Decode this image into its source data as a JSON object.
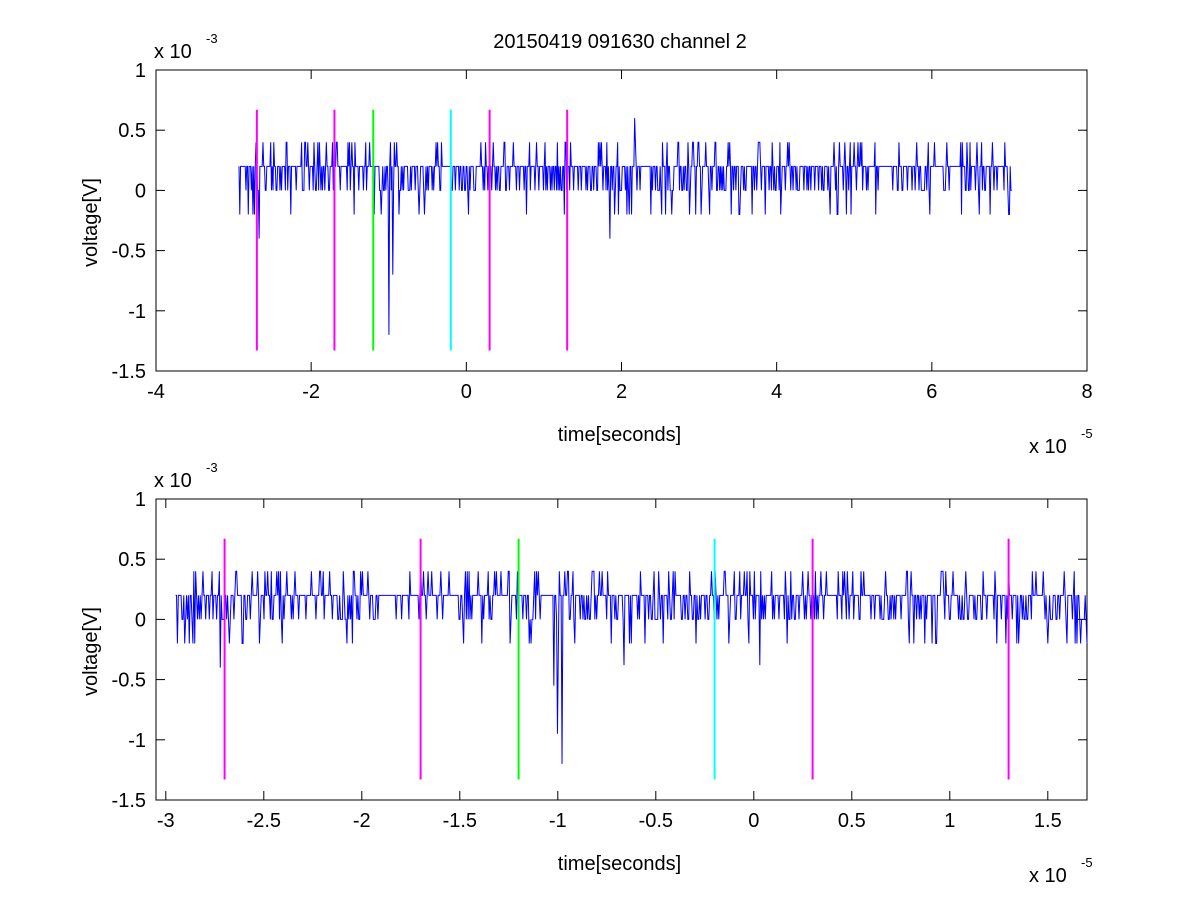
{
  "figure": {
    "title": "20150419 091630 channel 2"
  },
  "chart_data": [
    {
      "type": "line",
      "title": "20150419 091630 channel 2",
      "xlabel": "time[seconds]",
      "ylabel": "voltage[V]",
      "x_multiplier_label": "x 10",
      "x_multiplier_exp": "-5",
      "y_multiplier_label": "x 10",
      "y_multiplier_exp": "-3",
      "xlim": [
        -4,
        8
      ],
      "ylim": [
        -1.5,
        1
      ],
      "x_ticks": [
        -4,
        -2,
        0,
        2,
        4,
        6,
        8
      ],
      "x_tick_labels": [
        "-4",
        "-2",
        "0",
        "2",
        "4",
        "6",
        "8"
      ],
      "y_ticks": [
        -1.5,
        -1,
        -0.5,
        0,
        0.5,
        1
      ],
      "y_tick_labels": [
        "-1.5",
        "-1",
        "-0.5",
        "0",
        "0.5",
        "1"
      ],
      "grid": false,
      "series": [
        {
          "color": "#0000ff",
          "x_range": [
            -2.93,
            7.03
          ],
          "baseline": 0.1,
          "levels": [
            0,
            0.2,
            0.4
          ],
          "extremes": [
            {
              "x": -1.0,
              "y": -1.2
            },
            {
              "x": -0.95,
              "y": -0.7
            },
            {
              "x": 2.17,
              "y": 0.6
            },
            {
              "x": -2.67,
              "y": -0.4
            },
            {
              "x": 1.85,
              "y": -0.4
            }
          ]
        }
      ],
      "vlines": [
        {
          "x": -2.7,
          "color": "#ff00ff",
          "y_range": [
            -1.33,
            0.67
          ]
        },
        {
          "x": -1.7,
          "color": "#ff00ff",
          "y_range": [
            -1.33,
            0.67
          ]
        },
        {
          "x": -1.2,
          "color": "#00ff00",
          "y_range": [
            -1.33,
            0.67
          ]
        },
        {
          "x": -0.2,
          "color": "#00ffff",
          "y_range": [
            -1.33,
            0.67
          ]
        },
        {
          "x": 0.3,
          "color": "#ff00ff",
          "y_range": [
            -1.33,
            0.67
          ]
        },
        {
          "x": 1.3,
          "color": "#ff00ff",
          "y_range": [
            -1.33,
            0.67
          ]
        }
      ]
    },
    {
      "type": "line",
      "title": "",
      "xlabel": "time[seconds]",
      "ylabel": "voltage[V]",
      "x_multiplier_label": "x 10",
      "x_multiplier_exp": "-5",
      "y_multiplier_label": "x 10",
      "y_multiplier_exp": "-3",
      "xlim": [
        -3.05,
        1.7
      ],
      "ylim": [
        -1.5,
        1
      ],
      "x_ticks": [
        -3,
        -2.5,
        -2,
        -1.5,
        -1,
        -0.5,
        0,
        0.5,
        1,
        1.5
      ],
      "x_tick_labels": [
        "-3",
        "-2.5",
        "-2",
        "-1.5",
        "-1",
        "-0.5",
        "0",
        "0.5",
        "1",
        "1.5"
      ],
      "y_ticks": [
        -1.5,
        -1,
        -0.5,
        0,
        0.5,
        1
      ],
      "y_tick_labels": [
        "-1.5",
        "-1",
        "-0.5",
        "0",
        "0.5",
        "1"
      ],
      "grid": false,
      "series": [
        {
          "color": "#0000ff",
          "x_range": [
            -2.95,
            1.7
          ],
          "baseline": 0.1,
          "levels": [
            0,
            0.2,
            0.4
          ],
          "extremes": [
            {
              "x": -0.98,
              "y": -1.2
            },
            {
              "x": -1.0,
              "y": -0.95
            },
            {
              "x": -1.02,
              "y": -0.55
            },
            {
              "x": -2.72,
              "y": -0.4
            },
            {
              "x": -0.66,
              "y": -0.38
            },
            {
              "x": 0.03,
              "y": -0.38
            },
            {
              "x": -2.94,
              "y": -0.2
            },
            {
              "x": 1.7,
              "y": -0.2
            }
          ]
        }
      ],
      "vlines": [
        {
          "x": -2.7,
          "color": "#ff00ff",
          "y_range": [
            -1.33,
            0.67
          ]
        },
        {
          "x": -1.7,
          "color": "#ff00ff",
          "y_range": [
            -1.33,
            0.67
          ]
        },
        {
          "x": -1.2,
          "color": "#00ff00",
          "y_range": [
            -1.33,
            0.67
          ]
        },
        {
          "x": -0.2,
          "color": "#00ffff",
          "y_range": [
            -1.33,
            0.67
          ]
        },
        {
          "x": 0.3,
          "color": "#ff00ff",
          "y_range": [
            -1.33,
            0.67
          ]
        },
        {
          "x": 1.3,
          "color": "#ff00ff",
          "y_range": [
            -1.33,
            0.67
          ]
        }
      ]
    }
  ]
}
